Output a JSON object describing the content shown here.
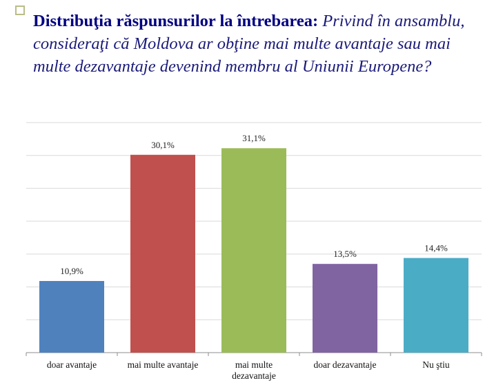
{
  "slide": {
    "title_bold": "Distribuţia răspunsurilor la întrebarea:",
    "title_italic": "Privind în ansamblu, consideraţi că Moldova ar obţine mai multe avantaje sau mai multe dezavantaje devenind membru al Uniunii Europene?"
  },
  "chart_data": {
    "type": "bar",
    "categories": [
      "doar avantaje",
      "mai multe avantaje",
      "mai multe dezavantaje",
      "doar dezavantaje",
      "Nu ştiu"
    ],
    "category_lines": [
      [
        "doar avantaje"
      ],
      [
        "mai multe avantaje"
      ],
      [
        "mai multe",
        "dezavantaje"
      ],
      [
        "doar dezavantaje"
      ],
      [
        "Nu ştiu"
      ]
    ],
    "values": [
      10.9,
      30.1,
      31.1,
      13.5,
      14.4
    ],
    "data_labels": [
      "10,9%",
      "30,1%",
      "31,1%",
      "13,5%",
      "14,4%"
    ],
    "colors": [
      "#4f81bd",
      "#c0504d",
      "#9bbb59",
      "#8064a2",
      "#4bacc6"
    ],
    "ylim": [
      0,
      35
    ],
    "grid": true
  }
}
